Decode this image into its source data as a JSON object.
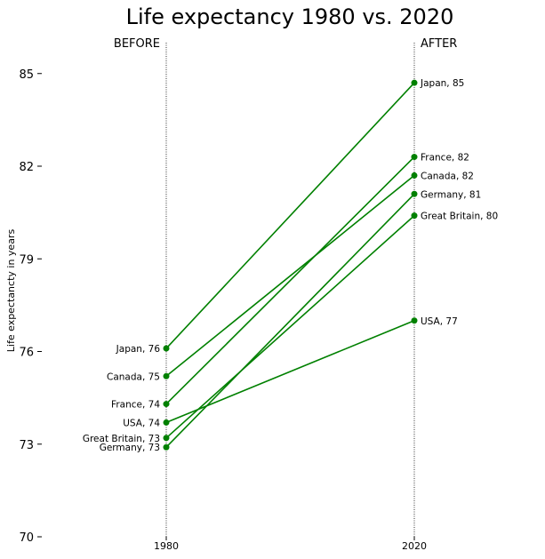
{
  "chart_data": {
    "type": "line",
    "title": "Life expectancy 1980 vs. 2020",
    "ylabel": "Life expectancty in years",
    "xlabel": "",
    "x": [
      "1980",
      "2020"
    ],
    "ylim": [
      70,
      86
    ],
    "yticks": [
      70,
      73,
      76,
      79,
      82,
      85
    ],
    "side_labels": {
      "before": "BEFORE",
      "after": "AFTER"
    },
    "line_color": "#008000",
    "grid": false,
    "series": [
      {
        "name": "Japan",
        "values": [
          76.1,
          84.7
        ],
        "start_label": "Japan, 76",
        "end_label": "Japan, 85"
      },
      {
        "name": "Canada",
        "values": [
          75.2,
          81.7
        ],
        "start_label": "Canada, 75",
        "end_label": "Canada, 82"
      },
      {
        "name": "France",
        "values": [
          74.3,
          82.3
        ],
        "start_label": "France, 74",
        "end_label": "France, 82"
      },
      {
        "name": "USA",
        "values": [
          73.7,
          77.0
        ],
        "start_label": "USA, 74",
        "end_label": "USA, 77"
      },
      {
        "name": "Great Britain",
        "values": [
          73.2,
          80.4
        ],
        "start_label": "Great Britain, 73",
        "end_label": "Great Britain, 80"
      },
      {
        "name": "Germany",
        "values": [
          72.9,
          81.1
        ],
        "start_label": "Germany, 73",
        "end_label": "Germany, 81"
      }
    ]
  }
}
